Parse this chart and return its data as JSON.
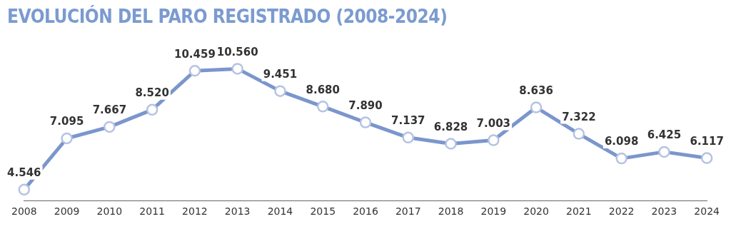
{
  "chart_data": {
    "type": "line",
    "title": "EVOLUCIÓN DEL PARO REGISTRADO (2008-2024)",
    "categories": [
      "2008",
      "2009",
      "2010",
      "2011",
      "2012",
      "2013",
      "2014",
      "2015",
      "2016",
      "2017",
      "2018",
      "2019",
      "2020",
      "2021",
      "2022",
      "2023",
      "2024"
    ],
    "series": [
      {
        "color": "#7b96cc",
        "values": [
          4546,
          7095,
          7667,
          8520,
          10459,
          10560,
          9451,
          8680,
          7890,
          7137,
          6828,
          7003,
          8636,
          7322,
          6098,
          6425,
          6117
        ],
        "value_labels": [
          "4.546",
          "7.095",
          "7.667",
          "8.520",
          "10.459",
          "10.560",
          "9.451",
          "8.680",
          "7.890",
          "7.137",
          "6.828",
          "7.003",
          "8.636",
          "7.322",
          "6.098",
          "6.425",
          "6.117"
        ]
      }
    ],
    "marker": "circle",
    "line_style": "solid",
    "grid": false,
    "legend": false,
    "tick_labels": "x"
  }
}
